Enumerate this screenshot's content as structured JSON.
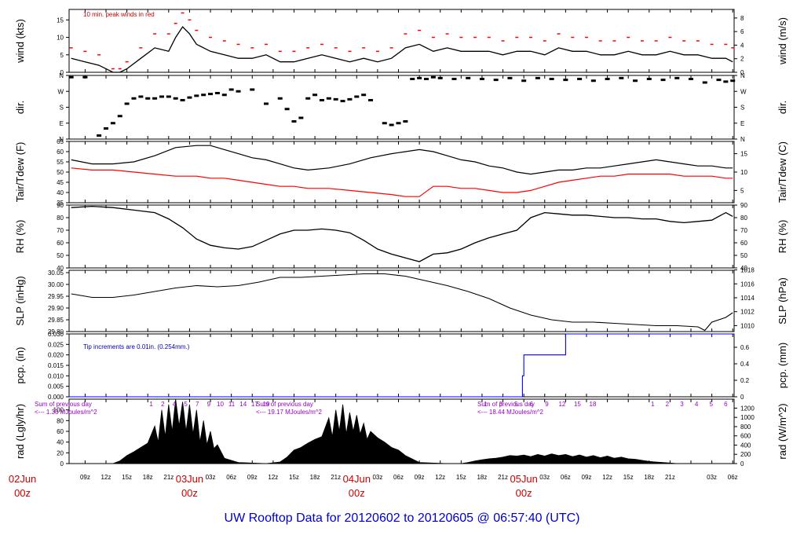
{
  "title": "UW Rooftop Data for 20120602  to  20120605 @ 06:57:40  (UTC)",
  "colors": {
    "axis": "#000000",
    "peak": "#ff0000",
    "dew": "#ff0000",
    "pcp": "#0000ff",
    "note_red": "#cc0000",
    "note_blue": "#0000aa",
    "radiation_note": "#9900cc",
    "date_label": "#cc0000",
    "title": "#0000cc"
  },
  "time_axis": {
    "hours_start": 6.7,
    "hours_end": 102.2,
    "tick_hours": [
      9,
      12,
      15,
      18,
      21,
      24,
      27,
      30,
      33,
      36,
      39,
      42,
      45,
      48,
      51,
      54,
      57,
      60,
      63,
      66,
      69,
      72,
      75,
      78,
      81,
      84,
      87,
      90,
      93,
      96,
      99,
      102
    ],
    "tick_labels": [
      "09z",
      "12z",
      "15z",
      "18z",
      "21z",
      "",
      "03z",
      "06z",
      "09z",
      "12z",
      "15z",
      "18z",
      "21z",
      "",
      "03z",
      "06z",
      "09z",
      "12z",
      "15z",
      "18z",
      "21z",
      "",
      "03z",
      "06z",
      "09z",
      "12z",
      "15z",
      "18z",
      "21z",
      "",
      "03z",
      "06z"
    ],
    "date_labels": [
      {
        "hour": 0,
        "date": "02Jun",
        "time": "00z"
      },
      {
        "hour": 24,
        "date": "03Jun",
        "time": "00z"
      },
      {
        "hour": 48,
        "date": "04Jun",
        "time": "00z"
      },
      {
        "hour": 72,
        "date": "05Jun",
        "time": "00z"
      }
    ]
  },
  "chart_data": [
    {
      "type": "line",
      "name": "wind",
      "ylabel_left": "wind (kts)",
      "ylabel_right": "wind (m/s)",
      "ylim": [
        0,
        18
      ],
      "yticks_left": [
        0,
        5,
        10,
        15
      ],
      "yticks_right": [
        0,
        2,
        4,
        6,
        8
      ],
      "annotation": "10 min. peak winds in red",
      "x": [
        7,
        9,
        11,
        13,
        14,
        15,
        17,
        19,
        21,
        22,
        23,
        24,
        25,
        27,
        29,
        31,
        33,
        35,
        37,
        39,
        41,
        43,
        45,
        47,
        49,
        51,
        53,
        55,
        57,
        59,
        61,
        63,
        65,
        67,
        69,
        71,
        73,
        75,
        77,
        79,
        81,
        83,
        85,
        87,
        89,
        91,
        93,
        95,
        97,
        99,
        101,
        102
      ],
      "values": [
        4,
        3,
        2,
        0,
        0,
        1,
        4,
        7,
        6,
        10,
        13,
        11,
        8,
        6,
        5,
        4,
        4,
        5,
        3,
        3,
        4,
        5,
        4,
        3,
        4,
        3,
        4,
        7,
        8,
        6,
        7,
        6,
        6,
        6,
        5,
        6,
        6,
        5,
        7,
        6,
        6,
        5,
        5,
        6,
        5,
        5,
        6,
        5,
        5,
        4,
        4,
        3
      ],
      "peaks": [
        7,
        6,
        5,
        1,
        1,
        3,
        7,
        11,
        11,
        14,
        17,
        15,
        12,
        10,
        9,
        8,
        7,
        8,
        6,
        6,
        7,
        8,
        7,
        6,
        7,
        6,
        7,
        11,
        12,
        10,
        11,
        10,
        10,
        10,
        9,
        10,
        10,
        9,
        11,
        10,
        10,
        9,
        9,
        10,
        9,
        9,
        10,
        9,
        9,
        8,
        8,
        7
      ]
    },
    {
      "type": "scatter",
      "name": "dir",
      "ylabel_left": "dir.",
      "ylabel_right": "dir.",
      "ylim": [
        0,
        360
      ],
      "yticks": [
        0,
        90,
        180,
        270,
        360
      ],
      "ytick_labels": [
        "N",
        "E",
        "S",
        "W",
        "N"
      ],
      "x": [
        7,
        9,
        11,
        12,
        13,
        14,
        15,
        16,
        17,
        18,
        19,
        20,
        21,
        22,
        23,
        24,
        25,
        26,
        27,
        28,
        29,
        30,
        31,
        33,
        35,
        37,
        38,
        39,
        40,
        41,
        42,
        43,
        44,
        45,
        46,
        47,
        48,
        49,
        50,
        52,
        53,
        54,
        55,
        56,
        57,
        58,
        59,
        60,
        62,
        64,
        66,
        68,
        70,
        72,
        74,
        76,
        78,
        80,
        82,
        84,
        86,
        88,
        90,
        92,
        94,
        96,
        98,
        100,
        101,
        102
      ],
      "values": [
        350,
        350,
        20,
        60,
        90,
        130,
        200,
        230,
        240,
        230,
        230,
        240,
        240,
        230,
        220,
        235,
        245,
        250,
        255,
        260,
        250,
        280,
        270,
        280,
        200,
        230,
        170,
        100,
        120,
        230,
        250,
        220,
        230,
        225,
        215,
        225,
        240,
        250,
        220,
        90,
        80,
        90,
        100,
        340,
        345,
        340,
        350,
        345,
        340,
        345,
        340,
        335,
        345,
        330,
        345,
        340,
        335,
        340,
        330,
        340,
        345,
        330,
        340,
        335,
        345,
        340,
        320,
        335,
        325,
        330
      ]
    },
    {
      "type": "line",
      "name": "temperature",
      "ylabel_left": "Tair/Tdew (F)",
      "ylabel_right": "Tair/Tdew (C)",
      "ylim": [
        35,
        65
      ],
      "yticks_left": [
        35,
        40,
        45,
        50,
        55,
        60,
        65
      ],
      "yticks_right": [
        5,
        10,
        15
      ],
      "x": [
        7,
        10,
        13,
        16,
        19,
        22,
        25,
        27,
        29,
        31,
        33,
        35,
        37,
        39,
        41,
        44,
        47,
        50,
        53,
        55,
        57,
        59,
        61,
        63,
        65,
        67,
        69,
        71,
        73,
        75,
        77,
        79,
        81,
        83,
        85,
        87,
        89,
        91,
        93,
        95,
        97,
        99,
        101,
        102
      ],
      "series": [
        {
          "values": [
            56,
            54,
            54,
            55,
            58,
            62,
            63,
            63,
            61,
            59,
            57,
            56,
            54,
            52,
            51,
            52,
            54,
            57,
            59,
            60,
            61,
            60,
            58,
            56,
            55,
            53,
            52,
            50,
            49,
            50,
            51,
            51,
            52,
            52,
            53,
            54,
            55,
            56,
            55,
            54,
            53,
            53,
            52,
            52
          ]
        },
        {
          "values": [
            52,
            51,
            51,
            50,
            49,
            48,
            48,
            47,
            47,
            46,
            45,
            44,
            43,
            43,
            42,
            42,
            41,
            40,
            39,
            38,
            38,
            43,
            43,
            42,
            42,
            41,
            40,
            40,
            41,
            43,
            45,
            46,
            47,
            48,
            48,
            49,
            49,
            49,
            49,
            48,
            48,
            48,
            47,
            47
          ]
        }
      ]
    },
    {
      "type": "line",
      "name": "rh",
      "ylabel_left": "RH (%)",
      "ylabel_right": "RH (%)",
      "ylim": [
        40,
        90
      ],
      "yticks": [
        40,
        50,
        60,
        70,
        80,
        90
      ],
      "x": [
        7,
        10,
        13,
        16,
        19,
        21,
        23,
        25,
        27,
        29,
        31,
        33,
        35,
        37,
        39,
        41,
        43,
        45,
        47,
        49,
        51,
        53,
        55,
        57,
        59,
        61,
        63,
        65,
        67,
        69,
        71,
        73,
        75,
        77,
        79,
        81,
        83,
        85,
        87,
        89,
        91,
        93,
        95,
        97,
        99,
        101,
        102
      ],
      "values": [
        88,
        89,
        88,
        86,
        84,
        79,
        72,
        63,
        58,
        56,
        55,
        57,
        62,
        67,
        70,
        70,
        71,
        70,
        68,
        62,
        55,
        51,
        48,
        45,
        51,
        52,
        55,
        60,
        64,
        67,
        70,
        80,
        84,
        83,
        82,
        82,
        81,
        80,
        80,
        79,
        79,
        77,
        76,
        77,
        78,
        84,
        81
      ]
    },
    {
      "type": "line",
      "name": "slp",
      "ylabel_left": "SLP (inHg)",
      "ylabel_right": "SLP (hPa)",
      "ylim": [
        29.8,
        30.06
      ],
      "yticks_left": [
        29.8,
        29.85,
        29.9,
        29.95,
        30.0,
        30.05
      ],
      "ytick_labels_left": [
        "29.80",
        "29.85",
        "29.90",
        "29.95",
        "30.00",
        "30.05"
      ],
      "yticks_right_hpa": [
        1010,
        1012,
        1014,
        1016,
        1018
      ],
      "x": [
        7,
        10,
        13,
        16,
        19,
        22,
        25,
        28,
        31,
        34,
        37,
        40,
        43,
        46,
        49,
        52,
        55,
        58,
        61,
        64,
        67,
        70,
        73,
        76,
        79,
        82,
        85,
        88,
        91,
        94,
        97,
        98,
        99,
        101,
        102
      ],
      "values": [
        29.96,
        29.945,
        29.945,
        29.955,
        29.97,
        29.985,
        29.995,
        29.99,
        29.995,
        30.01,
        30.03,
        30.03,
        30.035,
        30.04,
        30.045,
        30.045,
        30.035,
        30.015,
        29.995,
        29.97,
        29.94,
        29.9,
        29.87,
        29.85,
        29.84,
        29.84,
        29.835,
        29.83,
        29.825,
        29.825,
        29.82,
        29.805,
        29.84,
        29.86,
        29.88
      ]
    },
    {
      "type": "line",
      "name": "pcp",
      "ylabel_left": "pcp. (in)",
      "ylabel_right": "pcp. (mm)",
      "ylim": [
        0,
        0.03
      ],
      "yticks_left": [
        0,
        0.005,
        0.01,
        0.015,
        0.02,
        0.025,
        0.03
      ],
      "ytick_labels_left": [
        "0.000",
        "0.005",
        "0.010",
        "0.015",
        "0.020",
        "0.025",
        "0.030"
      ],
      "yticks_right_mm": [
        0,
        0.2,
        0.4,
        0.6
      ],
      "ytick_labels_right": [
        "0",
        "0.2",
        "0.4",
        "0.6"
      ],
      "annotation": "Tip increments are 0.01in. (0.254mm.)",
      "x": [
        6.7,
        71.8,
        71.8,
        72.0,
        72.0,
        78.0,
        78.0,
        102.2
      ],
      "values": [
        0,
        0,
        0.01,
        0.01,
        0.02,
        0.02,
        0.03,
        0.03
      ]
    },
    {
      "type": "area",
      "name": "radiation",
      "ylabel_left": "rad (Lgly/hr)",
      "ylabel_right": "rad (W/m^2)",
      "ylim": [
        0,
        120
      ],
      "yticks_left": [
        0,
        20,
        40,
        60,
        80,
        100
      ],
      "yticks_right_wm2": [
        0,
        200,
        400,
        600,
        800,
        1000,
        1200
      ],
      "sun_hours_day1": [
        "1",
        "2",
        "4",
        "5",
        "7",
        "9",
        "10",
        "11",
        "14",
        "17",
        "19"
      ],
      "sun_hours_day2": [
        "1",
        "3",
        "5",
        "6",
        "9",
        "12",
        "15",
        "18"
      ],
      "sun_hours_day3": [
        "1",
        "2",
        "3",
        "4",
        "5",
        "6"
      ],
      "sum_notes": [
        {
          "line1": "Sum of previous day",
          "line2": "<--- 1.33 MJoules/m^2"
        },
        {
          "line1": "Sum of previous day",
          "line2": "<--- 19.17 MJoules/m^2"
        },
        {
          "line1": "Sum of previous day",
          "line2": "<--- 18.44 MJoules/m^2"
        }
      ],
      "x": [
        7,
        11,
        13,
        14,
        15,
        16,
        17,
        18,
        19,
        19.5,
        20,
        20.5,
        21,
        21.5,
        22,
        22.5,
        23,
        23.5,
        24,
        24.5,
        25,
        25.5,
        26,
        26.5,
        27,
        27.5,
        28,
        29,
        31,
        35,
        37,
        38,
        39,
        40,
        41,
        42,
        43,
        44,
        44.5,
        45,
        45.5,
        46,
        46.5,
        47,
        47.5,
        48,
        48.5,
        49,
        49.5,
        50,
        51,
        52,
        53,
        54,
        55,
        57,
        61,
        63,
        64,
        65,
        66,
        67,
        68,
        69,
        70,
        71,
        72,
        73,
        74,
        75,
        76,
        77,
        78,
        79,
        80,
        81,
        82,
        83,
        84,
        85,
        86,
        87,
        88,
        89,
        90,
        91,
        92,
        93,
        94,
        96,
        102
      ],
      "values": [
        0,
        0,
        0,
        5,
        15,
        22,
        30,
        38,
        70,
        40,
        100,
        50,
        110,
        60,
        120,
        70,
        115,
        60,
        110,
        55,
        100,
        40,
        80,
        35,
        60,
        28,
        35,
        10,
        2,
        0,
        3,
        12,
        25,
        30,
        38,
        45,
        50,
        85,
        50,
        100,
        60,
        110,
        55,
        95,
        60,
        90,
        55,
        75,
        45,
        60,
        48,
        40,
        30,
        25,
        15,
        2,
        0,
        0,
        2,
        5,
        7,
        9,
        10,
        12,
        15,
        14,
        16,
        13,
        17,
        14,
        18,
        15,
        17,
        13,
        16,
        12,
        15,
        11,
        14,
        10,
        12,
        9,
        8,
        6,
        4,
        3,
        2,
        1,
        0,
        0,
        0
      ]
    }
  ]
}
